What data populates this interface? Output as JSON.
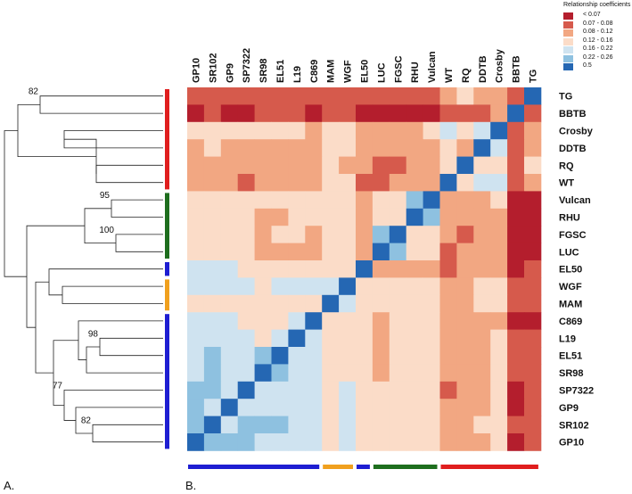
{
  "legend": {
    "title": "Relationship coefficients",
    "items": [
      {
        "label": "< 0.07",
        "color": "#b41e2d"
      },
      {
        "label": "0.07 - 0.08",
        "color": "#d65a4c"
      },
      {
        "label": "0.08 - 0.12",
        "color": "#f2a782"
      },
      {
        "label": "0.12 - 0.16",
        "color": "#fbdcc8"
      },
      {
        "label": "0.16 - 0.22",
        "color": "#cfe3f0"
      },
      {
        "label": "0.22 - 0.26",
        "color": "#8ec1e0"
      },
      {
        "label": "0.5",
        "color": "#2567b3"
      }
    ]
  },
  "panel_labels": {
    "a": "A.",
    "b": "B."
  },
  "chart_data": {
    "type": "heatmap",
    "title": "Relationship coefficients",
    "columns": [
      "GP10",
      "SR102",
      "GP9",
      "SP7322",
      "SR98",
      "EL51",
      "L19",
      "C869",
      "MAM",
      "WGF",
      "EL50",
      "LUC",
      "FGSC",
      "RHU",
      "Vulcan",
      "WT",
      "RQ",
      "DDTB",
      "Crosby",
      "BBTB",
      "TG"
    ],
    "rows": [
      "TG",
      "BBTB",
      "Crosby",
      "DDTB",
      "RQ",
      "WT",
      "Vulcan",
      "RHU",
      "FGSC",
      "LUC",
      "EL50",
      "WGF",
      "MAM",
      "C869",
      "L19",
      "EL51",
      "SR98",
      "SP7322",
      "GP9",
      "SR102",
      "GP10"
    ],
    "matrix": [
      [
        2,
        2,
        2,
        2,
        2,
        2,
        2,
        2,
        2,
        2,
        2,
        2,
        2,
        2,
        2,
        3,
        4,
        3,
        3,
        2,
        7
      ],
      [
        1,
        2,
        1,
        1,
        2,
        2,
        2,
        1,
        2,
        2,
        1,
        1,
        1,
        1,
        1,
        2,
        2,
        2,
        3,
        7,
        2
      ],
      [
        4,
        4,
        4,
        4,
        4,
        4,
        4,
        3,
        4,
        4,
        3,
        3,
        3,
        3,
        4,
        5,
        4,
        5,
        7,
        2,
        3
      ],
      [
        3,
        4,
        3,
        3,
        3,
        3,
        3,
        3,
        4,
        4,
        3,
        3,
        3,
        3,
        3,
        4,
        3,
        7,
        5,
        2,
        3
      ],
      [
        3,
        3,
        3,
        3,
        3,
        3,
        3,
        3,
        4,
        3,
        3,
        2,
        2,
        3,
        3,
        4,
        7,
        4,
        4,
        2,
        4
      ],
      [
        3,
        3,
        3,
        2,
        3,
        3,
        3,
        3,
        4,
        4,
        2,
        2,
        3,
        3,
        3,
        7,
        4,
        5,
        5,
        2,
        3
      ],
      [
        4,
        4,
        4,
        4,
        4,
        4,
        4,
        4,
        4,
        4,
        3,
        4,
        4,
        6,
        7,
        3,
        3,
        3,
        4,
        1,
        1
      ],
      [
        4,
        4,
        4,
        4,
        3,
        3,
        4,
        4,
        4,
        4,
        3,
        4,
        4,
        7,
        6,
        3,
        3,
        3,
        3,
        1,
        1
      ],
      [
        4,
        4,
        4,
        4,
        3,
        4,
        4,
        3,
        4,
        4,
        3,
        6,
        7,
        4,
        4,
        3,
        2,
        3,
        3,
        1,
        1
      ],
      [
        4,
        4,
        4,
        4,
        3,
        3,
        3,
        3,
        4,
        4,
        3,
        7,
        6,
        4,
        4,
        2,
        3,
        3,
        3,
        1,
        1
      ],
      [
        5,
        5,
        5,
        4,
        4,
        4,
        4,
        4,
        4,
        4,
        7,
        3,
        3,
        3,
        3,
        2,
        3,
        3,
        3,
        1,
        2
      ],
      [
        5,
        5,
        5,
        5,
        4,
        5,
        5,
        5,
        5,
        7,
        4,
        4,
        4,
        4,
        4,
        3,
        3,
        4,
        4,
        2,
        2
      ],
      [
        4,
        4,
        4,
        4,
        4,
        4,
        4,
        4,
        7,
        5,
        4,
        4,
        4,
        4,
        4,
        3,
        3,
        4,
        4,
        2,
        2
      ],
      [
        5,
        5,
        5,
        4,
        4,
        4,
        5,
        7,
        4,
        4,
        4,
        3,
        4,
        4,
        4,
        3,
        3,
        3,
        3,
        1,
        1
      ],
      [
        5,
        5,
        5,
        5,
        4,
        5,
        7,
        5,
        4,
        4,
        4,
        3,
        4,
        4,
        4,
        3,
        3,
        3,
        4,
        2,
        2
      ],
      [
        5,
        6,
        5,
        5,
        6,
        7,
        5,
        5,
        4,
        4,
        4,
        3,
        4,
        4,
        4,
        3,
        3,
        3,
        4,
        2,
        2
      ],
      [
        5,
        6,
        5,
        5,
        7,
        6,
        5,
        5,
        4,
        4,
        4,
        3,
        4,
        4,
        4,
        3,
        3,
        3,
        4,
        2,
        2
      ],
      [
        6,
        6,
        5,
        7,
        5,
        5,
        5,
        5,
        4,
        5,
        4,
        4,
        4,
        4,
        4,
        2,
        3,
        3,
        4,
        1,
        2
      ],
      [
        6,
        5,
        7,
        5,
        5,
        5,
        5,
        5,
        4,
        5,
        4,
        4,
        4,
        4,
        4,
        3,
        3,
        3,
        4,
        1,
        2
      ],
      [
        6,
        7,
        5,
        6,
        6,
        6,
        5,
        5,
        4,
        5,
        4,
        4,
        4,
        4,
        4,
        3,
        3,
        4,
        4,
        2,
        2
      ],
      [
        7,
        6,
        6,
        6,
        5,
        5,
        5,
        5,
        4,
        5,
        4,
        4,
        4,
        4,
        4,
        3,
        3,
        3,
        4,
        1,
        2
      ]
    ],
    "bootstrap_labels": [
      "82",
      "95",
      "100",
      "98",
      "77",
      "82"
    ],
    "group_bars": [
      {
        "color": "#e01e1e",
        "rows": [
          0,
          5
        ]
      },
      {
        "color": "#1e6e1e",
        "rows": [
          6,
          9
        ]
      },
      {
        "color": "#1e1ed2",
        "rows": [
          10,
          10
        ]
      },
      {
        "color": "#f0a01e",
        "rows": [
          11,
          12
        ]
      },
      {
        "color": "#1e1ed2",
        "rows": [
          13,
          20
        ]
      }
    ],
    "bottom_bars": [
      {
        "color": "#1e1ed2",
        "cols": [
          0,
          7
        ]
      },
      {
        "color": "#f0a01e",
        "cols": [
          8,
          9
        ]
      },
      {
        "color": "#1e1ed2",
        "cols": [
          10,
          10
        ]
      },
      {
        "color": "#1e6e1e",
        "cols": [
          11,
          14
        ]
      },
      {
        "color": "#e01e1e",
        "cols": [
          15,
          20
        ]
      }
    ],
    "dendrogram": [
      [
        0,
        1,
        "82"
      ],
      [
        2,
        3,
        ""
      ],
      [
        4,
        5,
        ""
      ],
      [
        [
          4,
          5
        ],
        [
          2,
          3
        ],
        ""
      ],
      [
        [
          [
            4,
            5
          ],
          [
            2,
            3
          ]
        ],
        [
          0,
          1
        ],
        ""
      ],
      [
        6,
        7,
        "95"
      ],
      [
        8,
        9,
        "100"
      ],
      [
        [
          6,
          7
        ],
        [
          8,
          9
        ],
        ""
      ],
      [
        11,
        12,
        ""
      ],
      [
        [
          11,
          12
        ],
        10,
        ""
      ],
      [
        14,
        15,
        "98"
      ],
      [
        [
          14,
          15
        ],
        16,
        ""
      ],
      [
        [
          [
            14,
            15
          ],
          16
        ],
        13,
        ""
      ],
      [
        19,
        20,
        "82"
      ],
      [
        [
          19,
          20
        ],
        18,
        ""
      ],
      [
        [
          [
            19,
            20
          ],
          18
        ],
        17,
        "77"
      ],
      [
        [
          [
            [
              19,
              20
            ],
            18
          ],
          17
        ],
        [
          [
            [
              14,
              15
            ],
            16
          ],
          13
        ],
        ""
      ],
      [
        [
          [
            [
              [
                19,
                20
              ],
              18
            ],
            17
          ],
          [
            [
              [
                14,
                15
              ],
              16
            ],
            13
          ]
        ],
        [
          [
            11,
            12
          ],
          10
        ],
        ""
      ],
      [
        [
          [
            [
              [
                [
                  19,
                  20
                ],
                18
              ],
              17
            ],
            [
              [
                [
                  14,
                  15
                ],
                16
              ],
              13
            ]
          ],
          [
            [
              11,
              12
            ],
            10
          ]
        ],
        [
          [
            6,
            7
          ],
          [
            8,
            9
          ]
        ],
        ""
      ],
      [
        [
          [
            [
              [
                [
                  [
                    19,
                    20
                  ],
                  18
                ],
                17
              ],
              [
                [
                  [
                    14,
                    15
                  ],
                  16
                ],
                13
              ]
            ],
            [
              [
                11,
                12
              ],
              10
            ]
          ],
          [
            [
              6,
              7
            ],
            [
              8,
              9
            ]
          ]
        ],
        [
          [
            [
              4,
              5
            ],
            [
              2,
              3
            ]
          ],
          [
            0,
            1
          ]
        ],
        ""
      ]
    ]
  }
}
